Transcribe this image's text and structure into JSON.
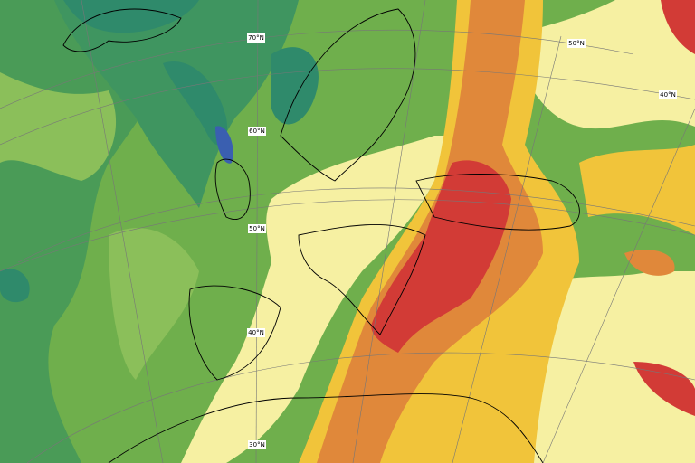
{
  "latitude_labels": [
    "70°N",
    "60°N",
    "50°N",
    "40°N",
    "30°N"
  ],
  "right_latitude_labels": [
    "50°N",
    "40°N"
  ]
}
